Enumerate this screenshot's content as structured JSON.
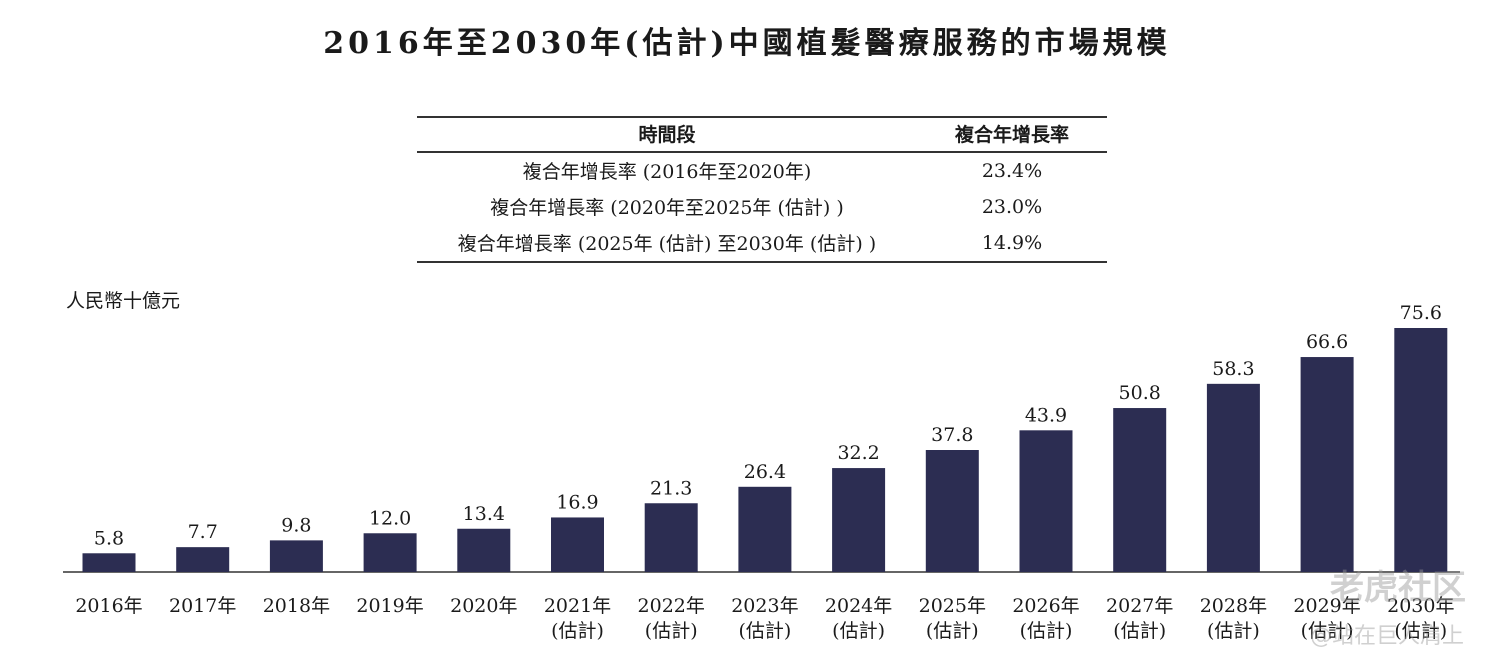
{
  "title": "2016年至2030年(估計)中國植髮醫療服務的市場規模",
  "table": {
    "headers": [
      "時間段",
      "複合年增長率"
    ],
    "rows": [
      {
        "period": "複合年增長率 (2016年至2020年)",
        "rate": "23.4%"
      },
      {
        "period": "複合年增長率 (2020年至2025年 (估計) )",
        "rate": "23.0%"
      },
      {
        "period": "複合年增長率 (2025年 (估計) 至2030年 (估計) )",
        "rate": "14.9%"
      }
    ]
  },
  "watermark": {
    "brand": "老虎社区",
    "user": "@站在巨人肩上"
  },
  "chart_data": {
    "type": "bar",
    "ylabel": "人民幣十億元",
    "categories": [
      {
        "year": "2016年",
        "note": ""
      },
      {
        "year": "2017年",
        "note": ""
      },
      {
        "year": "2018年",
        "note": ""
      },
      {
        "year": "2019年",
        "note": ""
      },
      {
        "year": "2020年",
        "note": ""
      },
      {
        "year": "2021年",
        "note": "(估計)"
      },
      {
        "year": "2022年",
        "note": "(估計)"
      },
      {
        "year": "2023年",
        "note": "(估計)"
      },
      {
        "year": "2024年",
        "note": "(估計)"
      },
      {
        "year": "2025年",
        "note": "(估計)"
      },
      {
        "year": "2026年",
        "note": "(估計)"
      },
      {
        "year": "2027年",
        "note": "(估計)"
      },
      {
        "year": "2028年",
        "note": "(估計)"
      },
      {
        "year": "2029年",
        "note": "(估計)"
      },
      {
        "year": "2030年",
        "note": "(估計)"
      }
    ],
    "values": [
      5.8,
      7.7,
      9.8,
      12.0,
      13.4,
      16.9,
      21.3,
      26.4,
      32.2,
      37.8,
      43.9,
      50.8,
      58.3,
      66.6,
      75.6
    ],
    "value_labels": [
      "5.8",
      "7.7",
      "9.8",
      "12.0",
      "13.4",
      "16.9",
      "21.3",
      "26.4",
      "32.2",
      "37.8",
      "43.9",
      "50.8",
      "58.3",
      "66.6",
      "75.6"
    ],
    "bar_color": "#2c2d52",
    "grid": false
  }
}
